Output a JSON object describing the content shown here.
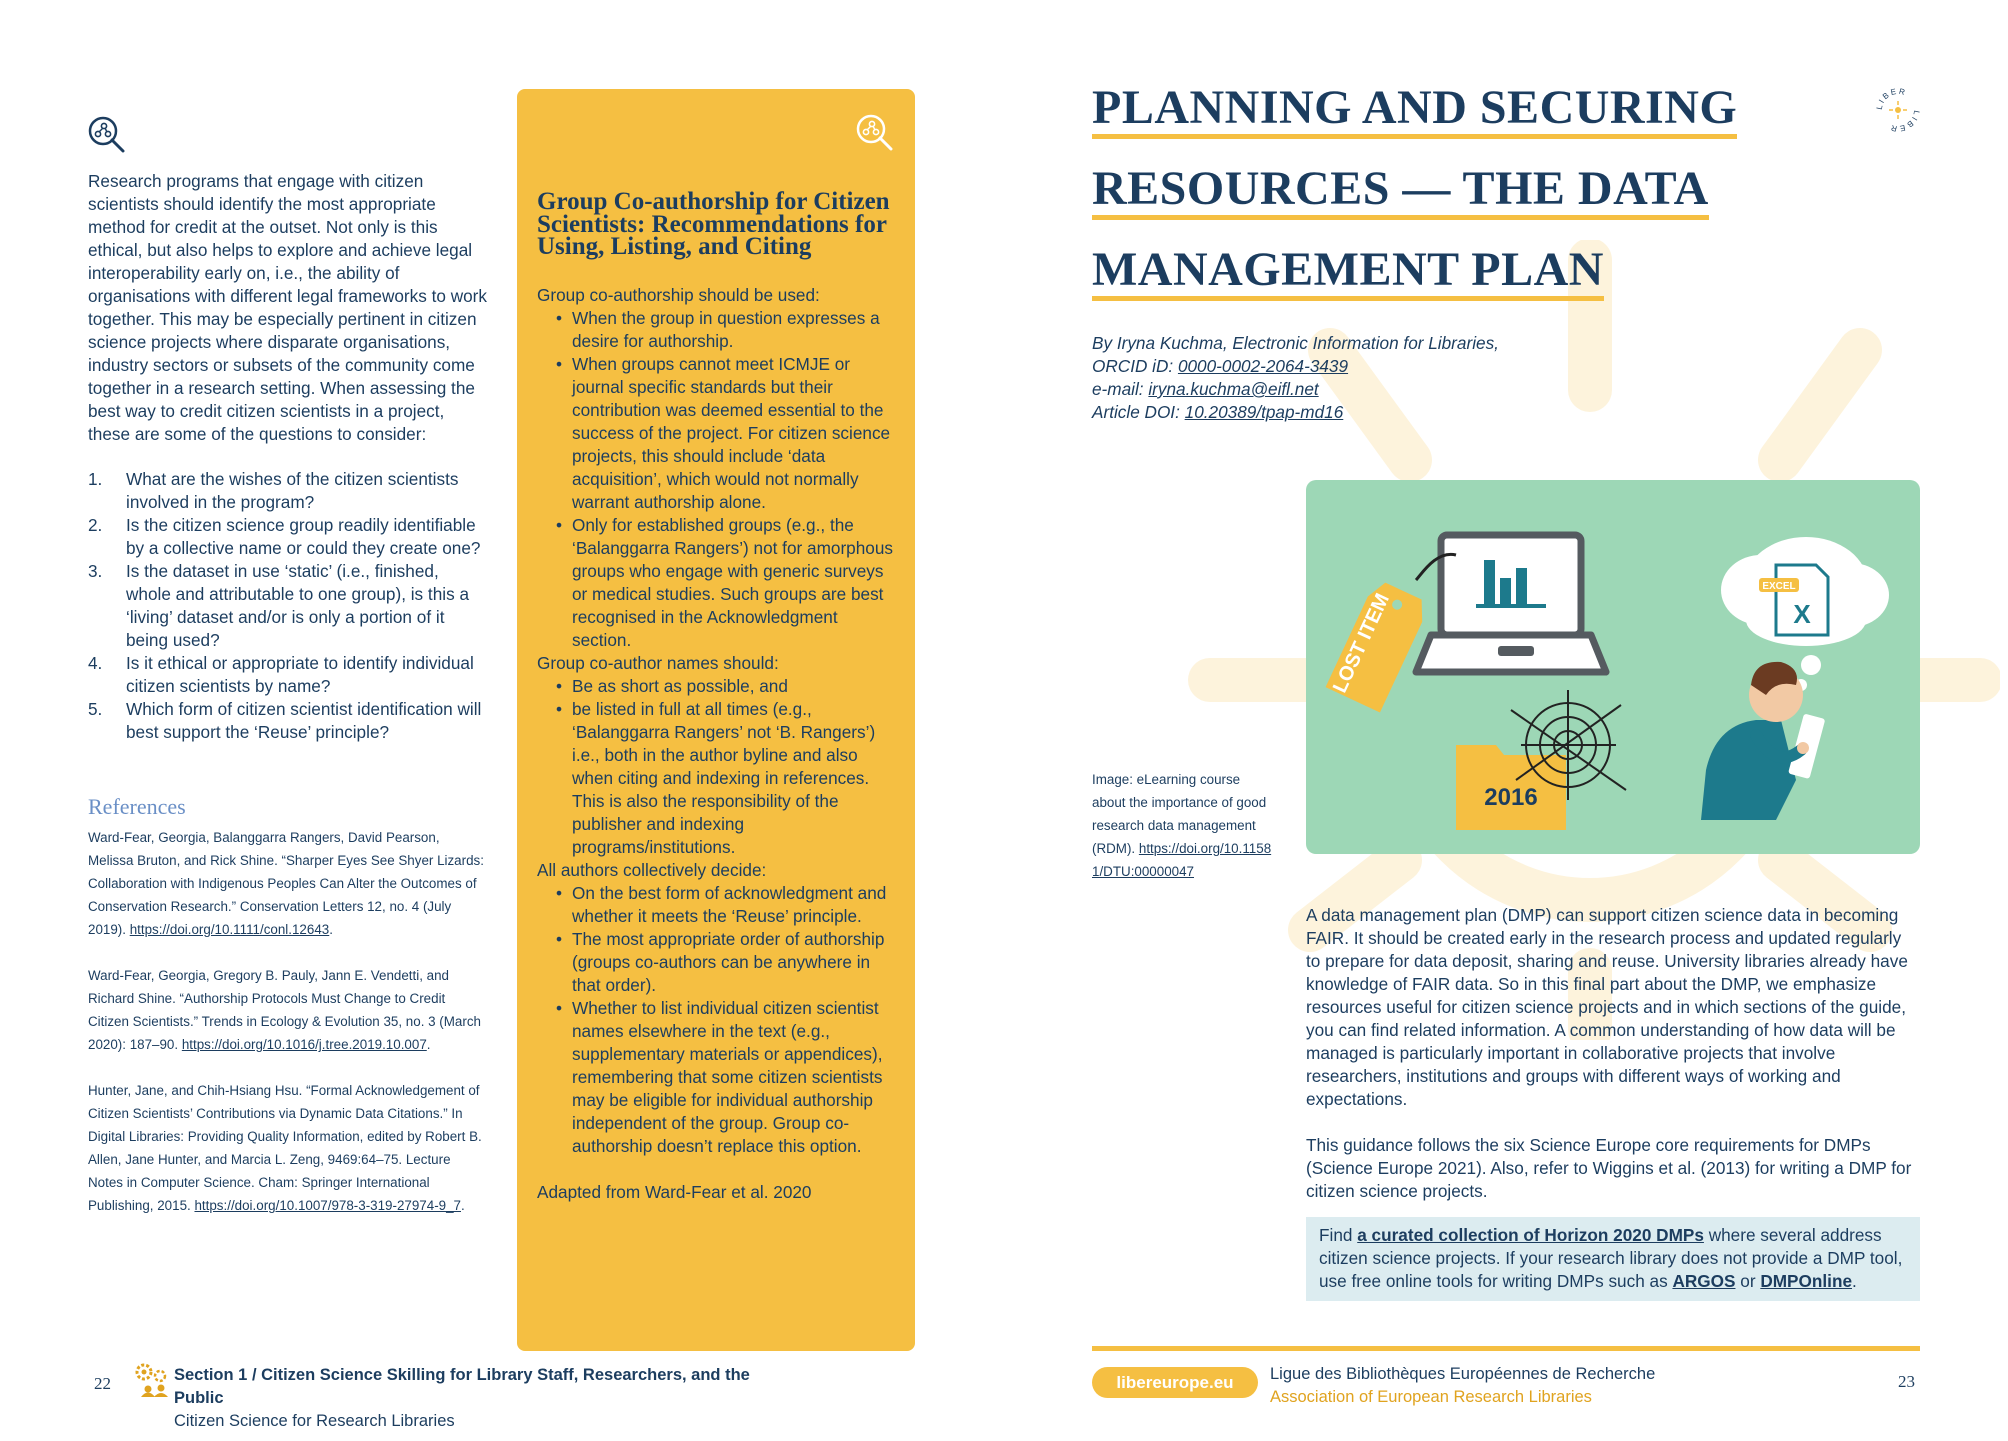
{
  "left_page": {
    "intro": "Research programs that engage with citizen scientists should identify the most appropriate method for credit at the outset. Not only is this ethical, but also helps to explore and achieve legal interoperability early on, i.e., the ability of organisations with different legal frameworks to work together. This may be especially pertinent in citizen science projects where disparate organisations, industry sectors or subsets of the community come together in a research setting. When assessing the best way to credit citizen scientists in a project, these are some of the questions to consider:",
    "questions": [
      {
        "num": "1.",
        "text": "What are the wishes of the citizen scientists involved in the program?"
      },
      {
        "num": "2.",
        "text": "Is the citizen science group readily identifiable by a collective name or could they create one?"
      },
      {
        "num": "3.",
        "text": "Is the dataset in use ‘static’ (i.e., finished, whole and attributable to one group), is this a ‘living’ dataset and/or is only a portion of it being used?"
      },
      {
        "num": "4.",
        "text": "Is it ethical or appropriate to identify individual citizen scientists by name?"
      },
      {
        "num": "5.",
        "text": "Which form of citizen scientist identification will best support the ‘Reuse’ principle?"
      }
    ],
    "references_title": "References",
    "references": [
      {
        "text": "Ward-Fear, Georgia, Balanggarra Rangers, David Pearson, Melissa Bruton, and Rick Shine. “Sharper Eyes See Shyer Lizards: Collaboration with Indigenous Peoples Can Alter the Outcomes of Conservation Research.” Conservation Letters 12, no. 4 (July 2019). ",
        "link": "https://doi.org/10.1111/conl.12643",
        "tail": "."
      },
      {
        "text": "Ward-Fear, Georgia, Gregory B. Pauly, Jann E. Vendetti, and Richard Shine. “Authorship Protocols Must Change to Credit Citizen Scientists.” Trends in Ecology & Evolution 35, no. 3 (March 2020): 187–90. ",
        "link": "https://doi.org/10.1016/j.tree.2019.10.007",
        "tail": "."
      },
      {
        "text": "Hunter, Jane, and Chih-Hsiang Hsu. “Formal Acknowledgement of Citizen Scientists’ Contributions via Dynamic Data Citations.” In Digital Libraries: Providing Quality Information, edited by Robert B. Allen, Jane Hunter, and Marcia L. Zeng, 9469:64–75. Lecture Notes in Computer Science. Cham: Springer International Publishing, 2015. ",
        "link": "https://doi.org/10.1007/978-3-319-27974-9_7",
        "tail": "."
      }
    ],
    "box": {
      "title": "Group Co-authorship for Citizen Scientists: Recommendations for Using, Listing, and Citing",
      "groups": [
        {
          "heading": "Group co-authorship should be used:",
          "items": [
            "When the group in question expresses a desire for authorship.",
            "When groups cannot meet ICMJE or journal specific standards but their contribution was deemed essential to the success of the project. For citizen science projects, this should include ‘data acquisition’, which would not normally warrant authorship alone.",
            "Only for established groups (e.g., the ‘Balanggarra Rangers’) not for amorphous groups who engage with generic surveys or medical studies. Such groups are best recognised in the Acknowledgment section."
          ]
        },
        {
          "heading": "Group co-author names should:",
          "items": [
            "Be as short as possible, and",
            "be listed in full at all times (e.g., ‘Balanggarra Rangers’ not ‘B. Rangers’) i.e., both in the author byline and also when citing and indexing in references. This is also the responsibility of the publisher and indexing programs/institutions."
          ]
        },
        {
          "heading": "All authors collectively decide:",
          "items": [
            "On the best form of acknowledgment and whether it meets the ‘Reuse’ principle.",
            "The most appropriate order of authorship (groups co-authors can be anywhere in that order).",
            "Whether to list individual citizen scientist names elsewhere in the text (e.g., supplementary materials or appendices), remembering that some citizen scientists may be eligible for individual authorship independent of the group. Group co-authorship doesn’t replace this option."
          ]
        }
      ],
      "adapted": "Adapted from Ward-Fear et al. 2020"
    },
    "footer": {
      "page_number": "22",
      "section": "Section 1 / Citizen Science Skilling for Library Staff, Researchers, and the Public",
      "subtitle": "Citizen Science for Research Libraries"
    }
  },
  "right_page": {
    "title_lines": [
      "PLANNING AND SECURING",
      "RESOURCES — THE DATA",
      "MANAGEMENT PLAN"
    ],
    "logo_text": "LIBER",
    "byline": {
      "author": "By Iryna Kuchma, Electronic Information for Libraries,",
      "orcid_label": "ORCID iD: ",
      "orcid": "0000-0002-2064-3439",
      "email_label": "e-mail: ",
      "email": "iryna.kuchma@eifl.net",
      "doi_label": "Article DOI: ",
      "doi": "10.20389/tpap-md16"
    },
    "illustration": {
      "tag_text": "LOST ITEM",
      "badge_text": "EXCEL",
      "file_letter": "X",
      "folder_year": "2016"
    },
    "caption": {
      "text": "Image: eLearning course about the importance of good research data management (RDM).",
      "link": "https://doi.org/10.11581/DTU:00000047"
    },
    "paragraphs": [
      "A data management plan (DMP) can support citizen science data in becoming FAIR. It should be created early in the research process and updated regularly to prepare for data deposit, sharing and reuse. University libraries already have knowledge of FAIR data. So in this final part about the DMP, we emphasize resources useful for citizen science projects and in which sections of the guide, you can find related information. A common understanding of how data will be managed is particularly important in collaborative projects that involve researchers, institutions and groups with different ways of working and expectations.",
      "This guidance follows the six Science Europe core requirements for DMPs (Science Europe 2021). Also, refer to Wiggins et al. (2013) for writing a DMP for citizen science projects."
    ],
    "info_box": {
      "pre": "Find ",
      "link1": "a curated collection of Horizon 2020 DMPs",
      "mid": " where several address citizen science projects. If your research library does not provide a DMP tool, use free online tools for writing DMPs such as ",
      "link2": "ARGOS",
      "or": " or ",
      "link3": "DMPOnline",
      "end": "."
    },
    "footer": {
      "url": "libereurope.eu",
      "assoc_fr": "Ligue des Bibliothèques Européennes de Recherche",
      "assoc_en": "Association of European Research Libraries",
      "page_number": "23"
    }
  },
  "colors": {
    "navy": "#1c3d5f",
    "yellow": "#f5bf42",
    "green": "#9dd7b6",
    "teal": "#1d7a8c",
    "light_blue": "#dcecf0",
    "refs_blue": "#6a8fc6"
  }
}
